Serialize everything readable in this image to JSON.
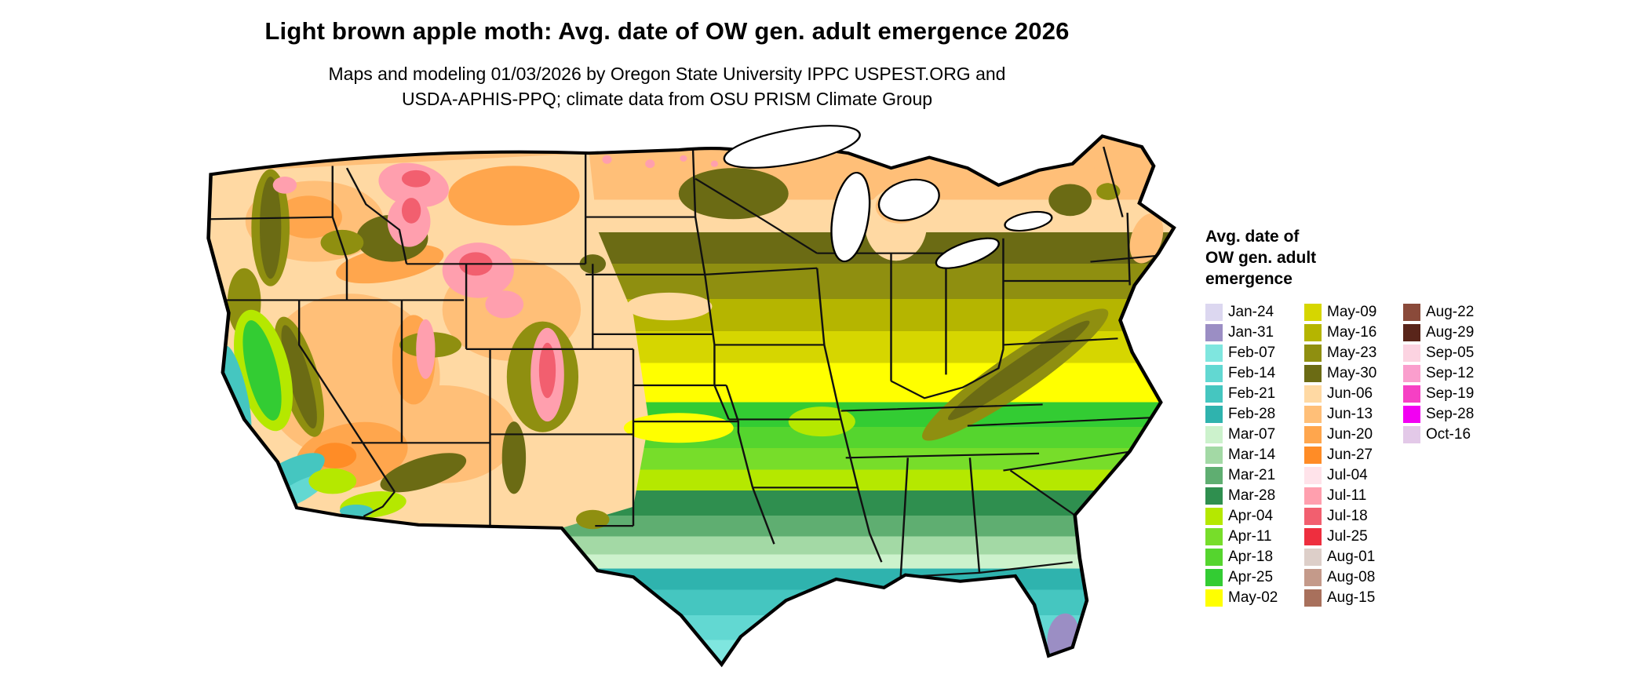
{
  "title": "Light brown apple moth: Avg. date of OW gen. adult emergence 2026",
  "subtitle_line1": "Maps and modeling 01/03/2026 by Oregon State University IPPC USPEST.ORG and",
  "subtitle_line2": "USDA-APHIS-PPQ; climate data from OSU PRISM Climate Group",
  "legend": {
    "heading_line1": "Avg. date of",
    "heading_line2": "OW gen. adult",
    "heading_line3": "emergence",
    "columns": [
      [
        {
          "label": "Jan-24",
          "color": "#dcd7f0"
        },
        {
          "label": "Jan-31",
          "color": "#9b8ec4"
        },
        {
          "label": "Feb-07",
          "color": "#7fe6df"
        },
        {
          "label": "Feb-14",
          "color": "#62d8d2"
        },
        {
          "label": "Feb-21",
          "color": "#45c6c0"
        },
        {
          "label": "Feb-28",
          "color": "#2fb3ae"
        },
        {
          "label": "Mar-07",
          "color": "#ccf2cc"
        },
        {
          "label": "Mar-14",
          "color": "#a3d9a5"
        },
        {
          "label": "Mar-21",
          "color": "#5fae71"
        },
        {
          "label": "Mar-28",
          "color": "#2f8f4f"
        },
        {
          "label": "Apr-04",
          "color": "#b5e800"
        },
        {
          "label": "Apr-11",
          "color": "#77dd2a"
        },
        {
          "label": "Apr-18",
          "color": "#55d52e"
        },
        {
          "label": "Apr-25",
          "color": "#33cc33"
        },
        {
          "label": "May-02",
          "color": "#ffff00"
        }
      ],
      [
        {
          "label": "May-09",
          "color": "#d6d600"
        },
        {
          "label": "May-16",
          "color": "#b5b500"
        },
        {
          "label": "May-23",
          "color": "#8f8f10"
        },
        {
          "label": "May-30",
          "color": "#6b6b14"
        },
        {
          "label": "Jun-06",
          "color": "#ffd9a3"
        },
        {
          "label": "Jun-13",
          "color": "#ffbf78"
        },
        {
          "label": "Jun-20",
          "color": "#ffa64d"
        },
        {
          "label": "Jun-27",
          "color": "#ff8c26"
        },
        {
          "label": "Jul-04",
          "color": "#ffe3ea"
        },
        {
          "label": "Jul-11",
          "color": "#ff9fae"
        },
        {
          "label": "Jul-18",
          "color": "#f25f6f"
        },
        {
          "label": "Jul-25",
          "color": "#ee2e3e"
        },
        {
          "label": "Aug-01",
          "color": "#ddcfc9"
        },
        {
          "label": "Aug-08",
          "color": "#c49a8a"
        },
        {
          "label": "Aug-15",
          "color": "#a8705c"
        }
      ],
      [
        {
          "label": "Aug-22",
          "color": "#8a4a3a"
        },
        {
          "label": "Aug-29",
          "color": "#59251a"
        },
        {
          "label": "Sep-05",
          "color": "#fcd3e1"
        },
        {
          "label": "Sep-12",
          "color": "#fa9ecd"
        },
        {
          "label": "Sep-19",
          "color": "#f640c4"
        },
        {
          "label": "Sep-28",
          "color": "#f200f2"
        },
        {
          "label": "Oct-16",
          "color": "#e3c9e8"
        }
      ]
    ]
  }
}
